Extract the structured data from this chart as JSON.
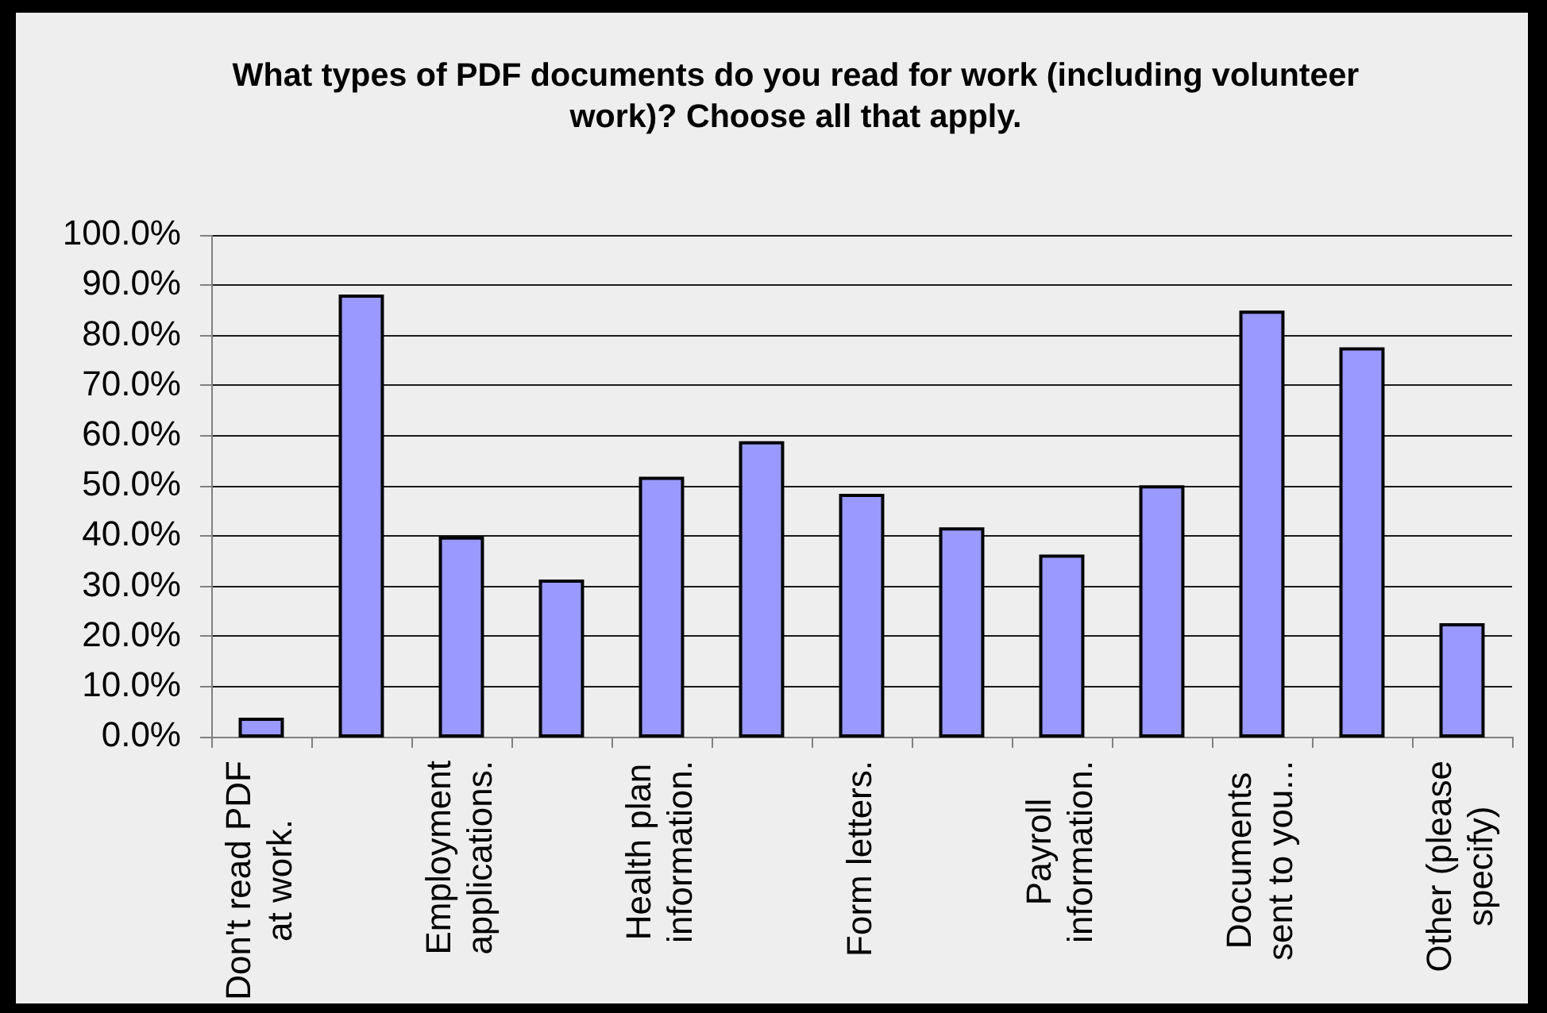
{
  "chart_data": {
    "type": "bar",
    "title": "What types of PDF documents do you read for work (including volunteer work)? Choose all that apply.",
    "categories": [
      "Don't read PDF at work.",
      null,
      "Employment applications.",
      null,
      "Health plan information.",
      null,
      "Form letters.",
      null,
      "Payroll information.",
      null,
      "Documents sent to you...",
      null,
      "Other (please specify)"
    ],
    "values": [
      3.5,
      87.8,
      39.6,
      31.0,
      51.5,
      58.6,
      48.1,
      41.4,
      36.0,
      49.8,
      84.6,
      77.3,
      22.3
    ],
    "color": "#9999ff",
    "ylim": [
      0,
      100
    ],
    "yticks": [
      {
        "value": 0,
        "label": "0.0%"
      },
      {
        "value": 10,
        "label": "10.0%"
      },
      {
        "value": 20,
        "label": "20.0%"
      },
      {
        "value": 30,
        "label": "30.0%"
      },
      {
        "value": 40,
        "label": "40.0%"
      },
      {
        "value": 50,
        "label": "50.0%"
      },
      {
        "value": 60,
        "label": "60.0%"
      },
      {
        "value": 70,
        "label": "70.0%"
      },
      {
        "value": 80,
        "label": "80.0%"
      },
      {
        "value": 90,
        "label": "90.0%"
      },
      {
        "value": 100,
        "label": "100.0%"
      }
    ],
    "grid": "y"
  }
}
